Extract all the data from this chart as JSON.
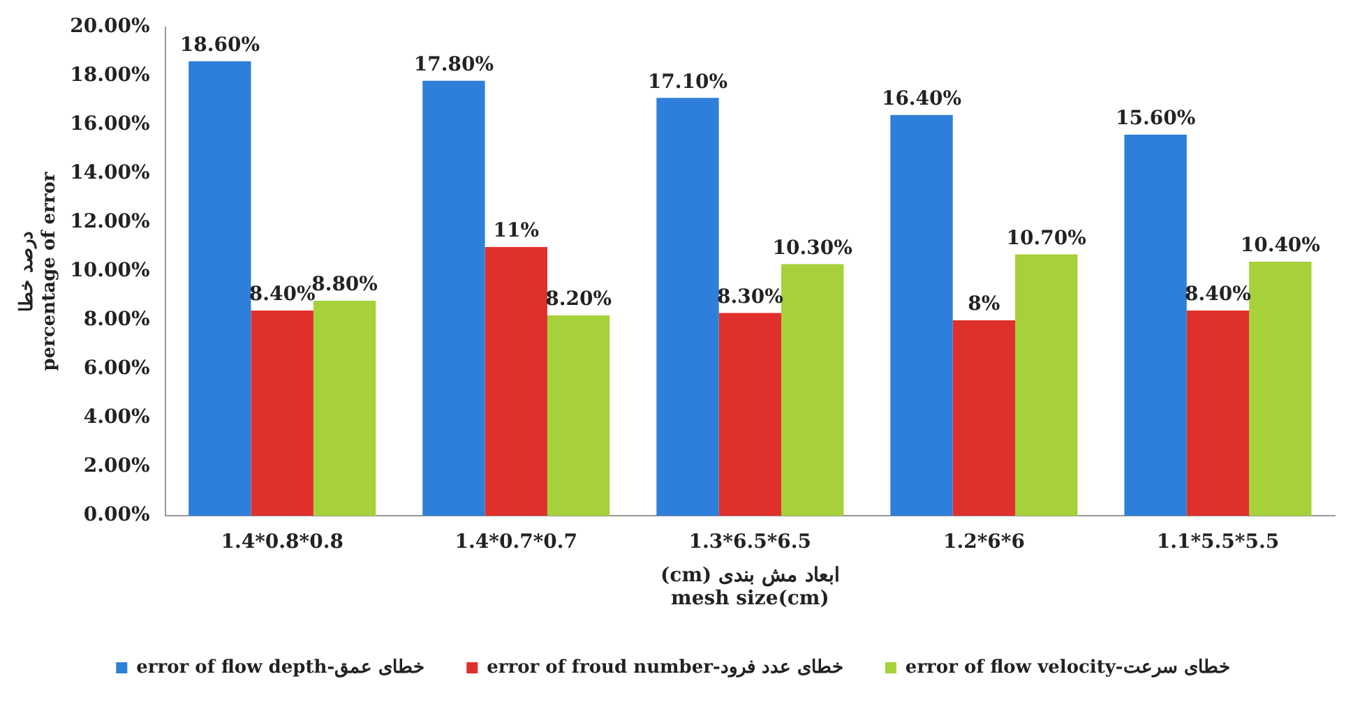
{
  "chart_data": {
    "type": "bar",
    "categories": [
      "1.4*0.8*0.8",
      "1.4*0.7*0.7",
      "1.3*6.5*6.5",
      "1.2*6*6",
      "1.1*5.5*5.5"
    ],
    "xlabel": "(cm) ابعاد مش بندی\nmesh size(cm)",
    "ylabel": "درصد خطا\npercentage of error",
    "series": [
      {
        "name": "error of flow depth-خطای عمق",
        "color": "#2e7fd9",
        "values": [
          18.6,
          17.8,
          17.1,
          16.4,
          15.6
        ],
        "value_labels": [
          "18.60%",
          "17.80%",
          "17.10%",
          "16.40%",
          "15.60%"
        ]
      },
      {
        "name": "error of froud number-خطای عدد فرود",
        "color": "#e0302c",
        "values": [
          8.4,
          11,
          8.3,
          8,
          8.4
        ],
        "value_labels": [
          "8.40%",
          "11%",
          "8.30%",
          "8%",
          "8.40%"
        ]
      },
      {
        "name": "error of flow velocity-خطای سرعت",
        "color": "#a6d13a",
        "values": [
          8.8,
          8.2,
          10.3,
          10.7,
          10.4
        ],
        "value_labels": [
          "8.80%",
          "8.20%",
          "10.30%",
          "10.70%",
          "10.40%"
        ]
      }
    ],
    "ylim": [
      0,
      20
    ],
    "yticks": [
      {
        "value": 0,
        "label": "0.00%"
      },
      {
        "value": 2,
        "label": "2.00%"
      },
      {
        "value": 4,
        "label": "4.00%"
      },
      {
        "value": 6,
        "label": "6.00%"
      },
      {
        "value": 8,
        "label": "8.00%"
      },
      {
        "value": 10,
        "label": "10.00%"
      },
      {
        "value": 12,
        "label": "12.00%"
      },
      {
        "value": 14,
        "label": "14.00%"
      },
      {
        "value": 16,
        "label": "16.00%"
      },
      {
        "value": 18,
        "label": "18.00%"
      },
      {
        "value": 20,
        "label": "20.00%"
      }
    ],
    "grid": false,
    "legend": "bottom"
  }
}
